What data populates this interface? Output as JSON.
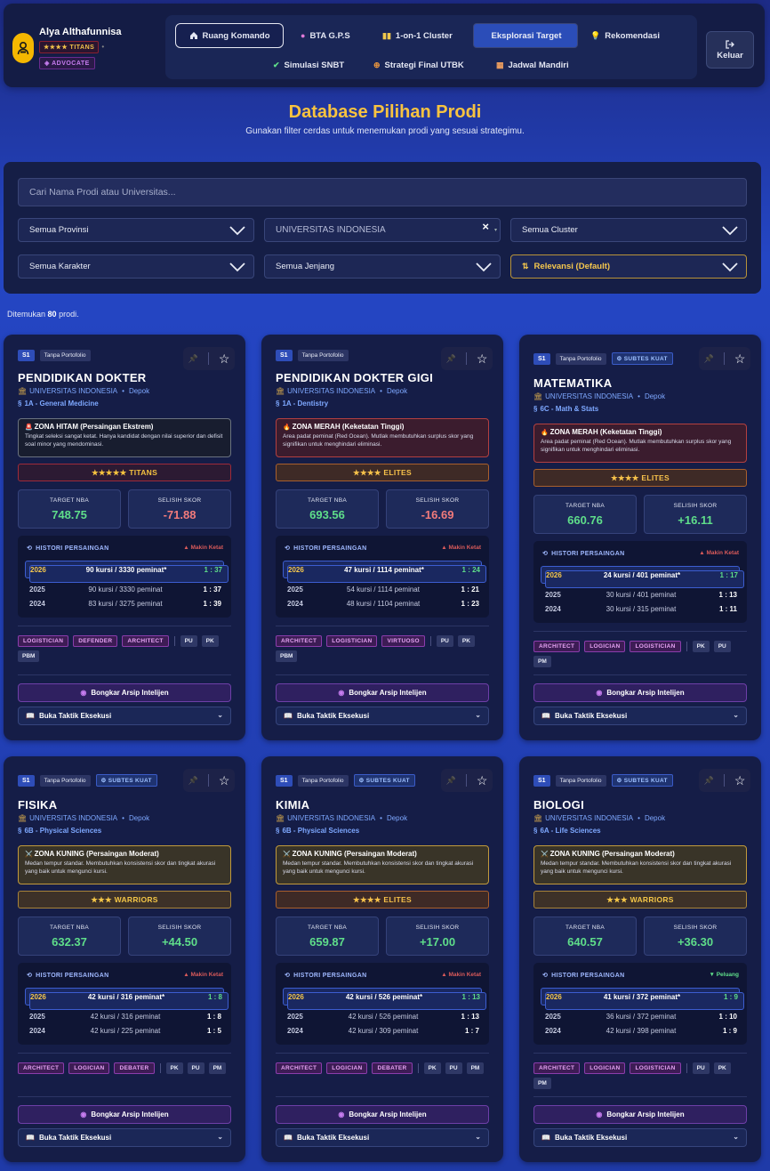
{
  "user": {
    "name": "Alya Althafunnisa",
    "rank": "★★★★ TITANS",
    "role": "ADVOCATE",
    "separator": "•"
  },
  "menu": {
    "items": [
      {
        "label": "Ruang Komando",
        "icon": "home-icon"
      },
      {
        "label": "BTA G.P.S",
        "icon": "brain-icon"
      },
      {
        "label": "1-on-1 Cluster",
        "icon": "book-icon"
      },
      {
        "label": "Eksplorasi Target",
        "icon": ""
      },
      {
        "label": "Rekomendasi",
        "icon": "lightbulb-icon"
      },
      {
        "label": "Simulasi SNBT",
        "icon": "check-icon"
      },
      {
        "label": "Strategi Final UTBK",
        "icon": "crosshair-icon"
      },
      {
        "label": "Jadwal Mandiri",
        "icon": "calendar-icon"
      }
    ],
    "active": "Ruang Komando",
    "selected": "Eksplorasi Target"
  },
  "logout_label": "Keluar",
  "page": {
    "title": "Database Pilihan Prodi",
    "subtitle": "Gunakan filter cerdas untuk menemukan prodi yang sesuai strategimu."
  },
  "filters": {
    "search_placeholder": "Cari Nama Prodi atau Universitas...",
    "provinsi": "Semua Provinsi",
    "universitas": "UNIVERSITAS INDONESIA",
    "clear": "×",
    "cluster": "Semua Cluster",
    "karakter": "Semua Karakter",
    "jenjang": "Semua Jenjang",
    "sort": "Relevansi (Default)"
  },
  "results": {
    "prefix": "Ditemukan",
    "count": "80",
    "suffix": "prodi."
  },
  "common": {
    "history_title": "HISTORI PERSAINGAN",
    "target_label": "TARGET NBA",
    "gap_label": "SELISIH SKOR",
    "arsip": "Bongkar Arsip Intelijen",
    "taktik": "Buka Taktik Eksekusi",
    "dot": "•"
  },
  "cards": [
    {
      "jenjang": "S1",
      "portofolio": "Tanpa Portofolio",
      "subtes_kuat": "",
      "title": "PENDIDIKAN DOKTER",
      "university": "UNIVERSITAS INDONESIA",
      "city": "Depok",
      "cluster": "1A - General Medicine",
      "zone_title": "ZONA HITAM (Persaingan Ekstrem)",
      "zone_desc": "Tingkat seleksi sangat ketat. Hanya kandidat dengan nilai superior dan defisit soal minor yang mendominasi.",
      "zone_type": "hitam",
      "zone_icon": "🚨",
      "tier": "★★★★★ TITANS",
      "tier_type": "titans",
      "target": "748.75",
      "gap": "-71.88",
      "gap_positive": false,
      "trend": "▲ Makin Ketat",
      "trend_type": "red",
      "history": [
        {
          "year": "2026",
          "detail": "90 kursi / 3330 peminat*",
          "ratio": "1 : 37"
        },
        {
          "year": "2025",
          "detail": "90 kursi / 3330 peminat",
          "ratio": "1 : 37"
        },
        {
          "year": "2024",
          "detail": "83 kursi / 3275 peminat",
          "ratio": "1 : 39"
        }
      ],
      "personalities": [
        "LOGISTICIAN",
        "DEFENDER",
        "ARCHITECT"
      ],
      "subtests": [
        "PU",
        "PK",
        "PBM"
      ]
    },
    {
      "jenjang": "S1",
      "portofolio": "Tanpa Portofolio",
      "subtes_kuat": "",
      "title": "PENDIDIKAN DOKTER GIGI",
      "university": "UNIVERSITAS INDONESIA",
      "city": "Depok",
      "cluster": "1A - Dentistry",
      "zone_title": "ZONA MERAH (Keketatan Tinggi)",
      "zone_desc": "Area padat peminat (Red Ocean). Mutlak membutuhkan surplus skor yang signifikan untuk menghindari eliminasi.",
      "zone_type": "merah",
      "zone_icon": "🔥",
      "tier": "★★★★ ELITES",
      "tier_type": "elites",
      "target": "693.56",
      "gap": "-16.69",
      "gap_positive": false,
      "trend": "▲ Makin Ketat",
      "trend_type": "red",
      "history": [
        {
          "year": "2026",
          "detail": "47 kursi / 1114 peminat*",
          "ratio": "1 : 24"
        },
        {
          "year": "2025",
          "detail": "54 kursi / 1114 peminat",
          "ratio": "1 : 21"
        },
        {
          "year": "2024",
          "detail": "48 kursi / 1104 peminat",
          "ratio": "1 : 23"
        }
      ],
      "personalities": [
        "ARCHITECT",
        "LOGISTICIAN",
        "VIRTUOSO"
      ],
      "subtests": [
        "PU",
        "PK",
        "PBM"
      ]
    },
    {
      "jenjang": "S1",
      "portofolio": "Tanpa Portofolio",
      "subtes_kuat": "SUBTES KUAT",
      "title": "MATEMATIKA",
      "university": "UNIVERSITAS INDONESIA",
      "city": "Depok",
      "cluster": "6C - Math & Stats",
      "zone_title": "ZONA MERAH (Keketatan Tinggi)",
      "zone_desc": "Area padat peminat (Red Ocean). Mutlak membutuhkan surplus skor yang signifikan untuk menghindari eliminasi.",
      "zone_type": "merah",
      "zone_icon": "🔥",
      "tier": "★★★★ ELITES",
      "tier_type": "elites",
      "target": "660.76",
      "gap": "+16.11",
      "gap_positive": true,
      "trend": "▲ Makin Ketat",
      "trend_type": "red",
      "history": [
        {
          "year": "2026",
          "detail": "24 kursi / 401 peminat*",
          "ratio": "1 : 17"
        },
        {
          "year": "2025",
          "detail": "30 kursi / 401 peminat",
          "ratio": "1 : 13"
        },
        {
          "year": "2024",
          "detail": "30 kursi / 315 peminat",
          "ratio": "1 : 11"
        }
      ],
      "personalities": [
        "ARCHITECT",
        "LOGICIAN",
        "LOGISTICIAN"
      ],
      "subtests": [
        "PK",
        "PU",
        "PM"
      ]
    },
    {
      "jenjang": "S1",
      "portofolio": "Tanpa Portofolio",
      "subtes_kuat": "SUBTES KUAT",
      "title": "FISIKA",
      "university": "UNIVERSITAS INDONESIA",
      "city": "Depok",
      "cluster": "6B - Physical Sciences",
      "zone_title": "ZONA KUNING (Persaingan Moderat)",
      "zone_desc": "Medan tempur standar. Membutuhkan konsistensi skor dan tingkat akurasi yang baik untuk mengunci kursi.",
      "zone_type": "kuning",
      "zone_icon": "⚔️",
      "tier": "★★★ WARRIORS",
      "tier_type": "warriors",
      "target": "632.37",
      "gap": "+44.50",
      "gap_positive": true,
      "trend": "▲ Makin Ketat",
      "trend_type": "red",
      "history": [
        {
          "year": "2026",
          "detail": "42 kursi / 316 peminat*",
          "ratio": "1 : 8"
        },
        {
          "year": "2025",
          "detail": "42 kursi / 316 peminat",
          "ratio": "1 : 8"
        },
        {
          "year": "2024",
          "detail": "42 kursi / 225 peminat",
          "ratio": "1 : 5"
        }
      ],
      "personalities": [
        "ARCHITECT",
        "LOGICIAN",
        "DEBATER"
      ],
      "subtests": [
        "PK",
        "PU",
        "PM"
      ]
    },
    {
      "jenjang": "S1",
      "portofolio": "Tanpa Portofolio",
      "subtes_kuat": "SUBTES KUAT",
      "title": "KIMIA",
      "university": "UNIVERSITAS INDONESIA",
      "city": "Depok",
      "cluster": "6B - Physical Sciences",
      "zone_title": "ZONA KUNING (Persaingan Moderat)",
      "zone_desc": "Medan tempur standar. Membutuhkan konsistensi skor dan tingkat akurasi yang baik untuk mengunci kursi.",
      "zone_type": "kuning",
      "zone_icon": "⚔️",
      "tier": "★★★★ ELITES",
      "tier_type": "elites",
      "target": "659.87",
      "gap": "+17.00",
      "gap_positive": true,
      "trend": "▲ Makin Ketat",
      "trend_type": "red",
      "history": [
        {
          "year": "2026",
          "detail": "42 kursi / 526 peminat*",
          "ratio": "1 : 13"
        },
        {
          "year": "2025",
          "detail": "42 kursi / 526 peminat",
          "ratio": "1 : 13"
        },
        {
          "year": "2024",
          "detail": "42 kursi / 309 peminat",
          "ratio": "1 : 7"
        }
      ],
      "personalities": [
        "ARCHITECT",
        "LOGICIAN",
        "DEBATER"
      ],
      "subtests": [
        "PK",
        "PU",
        "PM"
      ]
    },
    {
      "jenjang": "S1",
      "portofolio": "Tanpa Portofolio",
      "subtes_kuat": "SUBTES KUAT",
      "title": "BIOLOGI",
      "university": "UNIVERSITAS INDONESIA",
      "city": "Depok",
      "cluster": "6A - Life Sciences",
      "zone_title": "ZONA KUNING (Persaingan Moderat)",
      "zone_desc": "Medan tempur standar. Membutuhkan konsistensi skor dan tingkat akurasi yang baik untuk mengunci kursi.",
      "zone_type": "kuning",
      "zone_icon": "⚔️",
      "tier": "★★★ WARRIORS",
      "tier_type": "warriors",
      "target": "640.57",
      "gap": "+36.30",
      "gap_positive": true,
      "trend": "▼ Peluang",
      "trend_type": "green",
      "history": [
        {
          "year": "2026",
          "detail": "41 kursi / 372 peminat*",
          "ratio": "1 : 9"
        },
        {
          "year": "2025",
          "detail": "36 kursi / 372 peminat",
          "ratio": "1 : 10"
        },
        {
          "year": "2024",
          "detail": "42 kursi / 398 peminat",
          "ratio": "1 : 9"
        }
      ],
      "personalities": [
        "ARCHITECT",
        "LOGICIAN",
        "LOGISTICIAN"
      ],
      "subtests": [
        "PU",
        "PK",
        "PM"
      ]
    }
  ]
}
